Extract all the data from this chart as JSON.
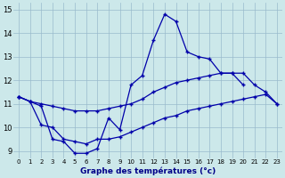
{
  "xlabel": "Graphe des températures (°c)",
  "bg_color": "#cce8ea",
  "grid_color": "#99bbcc",
  "line_color": "#0000aa",
  "yticks": [
    9,
    10,
    11,
    12,
    13,
    14,
    15
  ],
  "xticks": [
    0,
    1,
    2,
    3,
    4,
    5,
    6,
    7,
    8,
    9,
    10,
    11,
    12,
    13,
    14,
    15,
    16,
    17,
    18,
    19,
    20,
    21,
    22,
    23
  ],
  "ylim": [
    8.7,
    15.3
  ],
  "xlim": [
    -0.5,
    23.5
  ],
  "line1": [
    11.3,
    11.1,
    10.9,
    9.5,
    9.4,
    8.9,
    8.9,
    9.1,
    10.4,
    9.9,
    11.8,
    12.2,
    13.7,
    14.8,
    14.5,
    13.2,
    13.0,
    12.9,
    12.3,
    12.3,
    11.8,
    null,
    null,
    null
  ],
  "line2": [
    11.3,
    11.1,
    11.0,
    10.9,
    10.8,
    10.7,
    10.7,
    10.7,
    10.8,
    10.9,
    11.0,
    11.2,
    11.5,
    11.7,
    11.9,
    12.0,
    12.1,
    12.2,
    12.3,
    12.3,
    12.3,
    11.8,
    11.5,
    11.0
  ],
  "line3": [
    11.3,
    11.1,
    10.1,
    10.0,
    9.5,
    9.4,
    9.3,
    9.5,
    9.5,
    9.6,
    9.8,
    10.0,
    10.2,
    10.4,
    10.5,
    10.7,
    10.8,
    10.9,
    11.0,
    11.1,
    11.2,
    11.3,
    11.4,
    11.0
  ]
}
